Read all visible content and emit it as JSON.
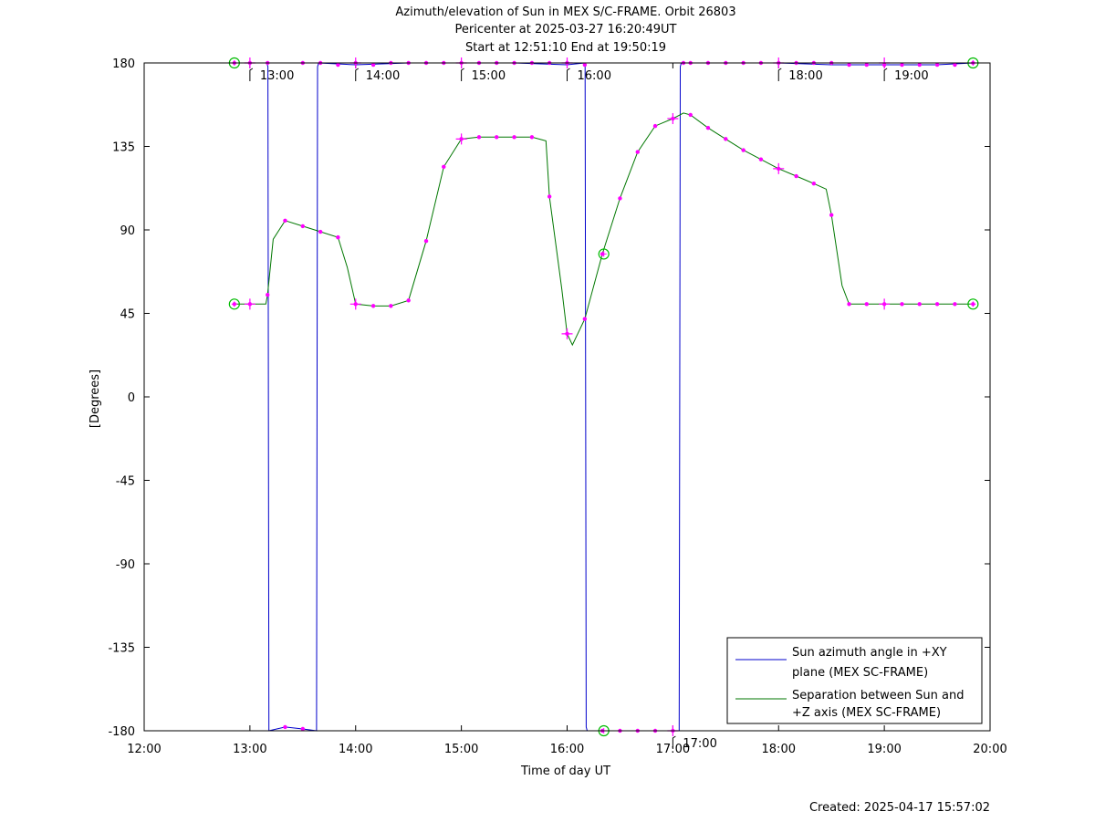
{
  "chart_data": {
    "type": "line",
    "title": "Azimuth/elevation of Sun in MEX S/C-FRAME.  Orbit 26803",
    "subtitle_1": "Pericenter at 2025-03-27 16:20:49UT",
    "subtitle_2": "Start at 12:51:10 End at 19:50:19",
    "xlabel": "Time of day UT",
    "ylabel": "[Degrees]",
    "created": "Created: 2025-04-17 15:57:02",
    "xlim": [
      12.0,
      20.0
    ],
    "ylim": [
      -180,
      180
    ],
    "x_ticks": [
      12,
      13,
      14,
      15,
      16,
      17,
      18,
      19,
      20
    ],
    "x_tick_labels": [
      "12:00",
      "13:00",
      "14:00",
      "15:00",
      "16:00",
      "17:00",
      "18:00",
      "19:00",
      "20:00"
    ],
    "y_ticks": [
      180,
      135,
      90,
      45,
      0,
      -45,
      -90,
      -135,
      -180
    ],
    "y_tick_labels": [
      "180",
      "135",
      "90",
      "45",
      "0",
      "-45",
      "-90",
      "-135",
      "-180"
    ],
    "hour_markers": [
      {
        "x": 13.0,
        "label": "13:00",
        "at": 180
      },
      {
        "x": 14.0,
        "label": "14:00",
        "at": 180
      },
      {
        "x": 15.0,
        "label": "15:00",
        "at": 180
      },
      {
        "x": 16.0,
        "label": "16:00",
        "at": 180
      },
      {
        "x": 17.0,
        "label": "17:00",
        "at": -180
      },
      {
        "x": 18.0,
        "label": "18:00",
        "at": 180
      },
      {
        "x": 19.0,
        "label": "19:00",
        "at": 180
      }
    ],
    "series": [
      {
        "name": "Sun azimuth angle in +XY plane (MEX SC-FRAME)",
        "legend_lines": [
          "Sun azimuth angle in +XY",
          "plane (MEX SC-FRAME)"
        ],
        "color": "#0000cc",
        "points": [
          [
            12.853,
            180
          ],
          [
            13.16,
            180
          ],
          [
            13.17,
            178
          ],
          [
            13.18,
            -180
          ],
          [
            13.333,
            -178
          ],
          [
            13.5,
            -179
          ],
          [
            13.63,
            -180
          ],
          [
            13.64,
            178
          ],
          [
            13.65,
            180
          ],
          [
            14.0,
            179
          ],
          [
            14.5,
            180
          ],
          [
            15.0,
            180
          ],
          [
            15.5,
            180
          ],
          [
            16.0,
            179
          ],
          [
            16.17,
            180
          ],
          [
            16.18,
            -178
          ],
          [
            16.19,
            -180
          ],
          [
            16.5,
            -180
          ],
          [
            17.0,
            -180
          ],
          [
            17.06,
            -180
          ],
          [
            17.07,
            178
          ],
          [
            17.08,
            180
          ],
          [
            17.5,
            180
          ],
          [
            18.0,
            180
          ],
          [
            18.5,
            179
          ],
          [
            19.0,
            179
          ],
          [
            19.5,
            179
          ],
          [
            19.839,
            180
          ]
        ]
      },
      {
        "name": "Separation between Sun and +Z axis (MEX SC-FRAME)",
        "legend_lines": [
          "Separation between Sun and",
          "+Z axis (MEX SC-FRAME)"
        ],
        "color": "#007700",
        "points": [
          [
            12.853,
            50
          ],
          [
            13.0,
            50
          ],
          [
            13.15,
            50
          ],
          [
            13.167,
            55
          ],
          [
            13.22,
            85
          ],
          [
            13.333,
            95
          ],
          [
            13.5,
            92
          ],
          [
            13.667,
            89
          ],
          [
            13.833,
            86
          ],
          [
            13.92,
            70
          ],
          [
            14.0,
            50
          ],
          [
            14.167,
            49
          ],
          [
            14.333,
            49
          ],
          [
            14.5,
            52
          ],
          [
            14.667,
            84
          ],
          [
            14.833,
            124
          ],
          [
            15.0,
            139
          ],
          [
            15.167,
            140
          ],
          [
            15.333,
            140
          ],
          [
            15.5,
            140
          ],
          [
            15.667,
            140
          ],
          [
            15.8,
            138
          ],
          [
            15.833,
            108
          ],
          [
            15.95,
            58
          ],
          [
            16.0,
            34
          ],
          [
            16.05,
            28
          ],
          [
            16.167,
            42
          ],
          [
            16.333,
            77
          ],
          [
            16.5,
            107
          ],
          [
            16.667,
            132
          ],
          [
            16.833,
            146
          ],
          [
            17.0,
            150
          ],
          [
            17.1,
            153
          ],
          [
            17.167,
            152
          ],
          [
            17.333,
            145
          ],
          [
            17.5,
            139
          ],
          [
            17.667,
            133
          ],
          [
            17.833,
            128
          ],
          [
            18.0,
            123
          ],
          [
            18.167,
            119
          ],
          [
            18.333,
            115
          ],
          [
            18.45,
            112
          ],
          [
            18.5,
            98
          ],
          [
            18.6,
            60
          ],
          [
            18.667,
            50
          ],
          [
            18.833,
            50
          ],
          [
            19.0,
            50
          ],
          [
            19.167,
            50
          ],
          [
            19.333,
            50
          ],
          [
            19.5,
            50
          ],
          [
            19.667,
            50
          ],
          [
            19.839,
            50
          ]
        ]
      }
    ],
    "markers": {
      "dots": [
        [
          12.853,
          180
        ],
        [
          13.0,
          180
        ],
        [
          13.167,
          180
        ],
        [
          13.5,
          180
        ],
        [
          13.667,
          180
        ],
        [
          13.833,
          179
        ],
        [
          14.0,
          180
        ],
        [
          14.167,
          179
        ],
        [
          14.333,
          180
        ],
        [
          14.5,
          180
        ],
        [
          14.667,
          180
        ],
        [
          14.833,
          180
        ],
        [
          15.0,
          180
        ],
        [
          15.167,
          180
        ],
        [
          15.333,
          180
        ],
        [
          15.5,
          180
        ],
        [
          15.667,
          180
        ],
        [
          15.833,
          180
        ],
        [
          16.0,
          180
        ],
        [
          16.167,
          179
        ],
        [
          17.1,
          180
        ],
        [
          17.167,
          180
        ],
        [
          17.333,
          180
        ],
        [
          17.5,
          180
        ],
        [
          17.667,
          180
        ],
        [
          17.833,
          180
        ],
        [
          18.0,
          180
        ],
        [
          18.167,
          180
        ],
        [
          18.333,
          180
        ],
        [
          18.5,
          180
        ],
        [
          18.667,
          179
        ],
        [
          18.833,
          179
        ],
        [
          19.0,
          179
        ],
        [
          19.167,
          179
        ],
        [
          19.333,
          179
        ],
        [
          19.5,
          179
        ],
        [
          19.667,
          179
        ],
        [
          19.839,
          180
        ],
        [
          13.333,
          -178
        ],
        [
          13.5,
          -179
        ],
        [
          16.333,
          -180
        ],
        [
          16.5,
          -180
        ],
        [
          16.667,
          -180
        ],
        [
          16.833,
          -180
        ],
        [
          17.0,
          -180
        ],
        [
          12.853,
          50
        ],
        [
          13.0,
          50
        ],
        [
          13.167,
          55
        ],
        [
          13.333,
          95
        ],
        [
          13.5,
          92
        ],
        [
          13.667,
          89
        ],
        [
          13.833,
          86
        ],
        [
          14.0,
          50
        ],
        [
          14.167,
          49
        ],
        [
          14.333,
          49
        ],
        [
          14.5,
          52
        ],
        [
          14.667,
          84
        ],
        [
          14.833,
          124
        ],
        [
          15.0,
          139
        ],
        [
          15.167,
          140
        ],
        [
          15.333,
          140
        ],
        [
          15.5,
          140
        ],
        [
          15.667,
          140
        ],
        [
          15.833,
          108
        ],
        [
          16.0,
          34
        ],
        [
          16.167,
          42
        ],
        [
          16.333,
          77
        ],
        [
          16.5,
          107
        ],
        [
          16.667,
          132
        ],
        [
          16.833,
          146
        ],
        [
          17.0,
          150
        ],
        [
          17.167,
          152
        ],
        [
          17.333,
          145
        ],
        [
          17.5,
          139
        ],
        [
          17.667,
          133
        ],
        [
          17.833,
          128
        ],
        [
          18.0,
          123
        ],
        [
          18.167,
          119
        ],
        [
          18.333,
          115
        ],
        [
          18.5,
          98
        ],
        [
          18.667,
          50
        ],
        [
          18.833,
          50
        ],
        [
          19.0,
          50
        ],
        [
          19.167,
          50
        ],
        [
          19.333,
          50
        ],
        [
          19.5,
          50
        ],
        [
          19.667,
          50
        ],
        [
          19.839,
          50
        ]
      ],
      "hour_crosses": [
        [
          13.0,
          180
        ],
        [
          14.0,
          180
        ],
        [
          15.0,
          180
        ],
        [
          16.0,
          180
        ],
        [
          18.0,
          180
        ],
        [
          19.0,
          180
        ],
        [
          17.0,
          -180
        ],
        [
          13.0,
          50
        ],
        [
          14.0,
          50
        ],
        [
          15.0,
          139
        ],
        [
          16.0,
          34
        ],
        [
          17.0,
          150
        ],
        [
          18.0,
          123
        ],
        [
          19.0,
          50
        ]
      ],
      "circles": [
        [
          12.853,
          180
        ],
        [
          19.839,
          180
        ],
        [
          12.853,
          50
        ],
        [
          19.839,
          50
        ],
        [
          16.347,
          77
        ],
        [
          16.347,
          -180
        ]
      ]
    },
    "legend_position": "bottom-right",
    "marker_color": "#ff00ff",
    "circle_color": "#00bb00"
  }
}
